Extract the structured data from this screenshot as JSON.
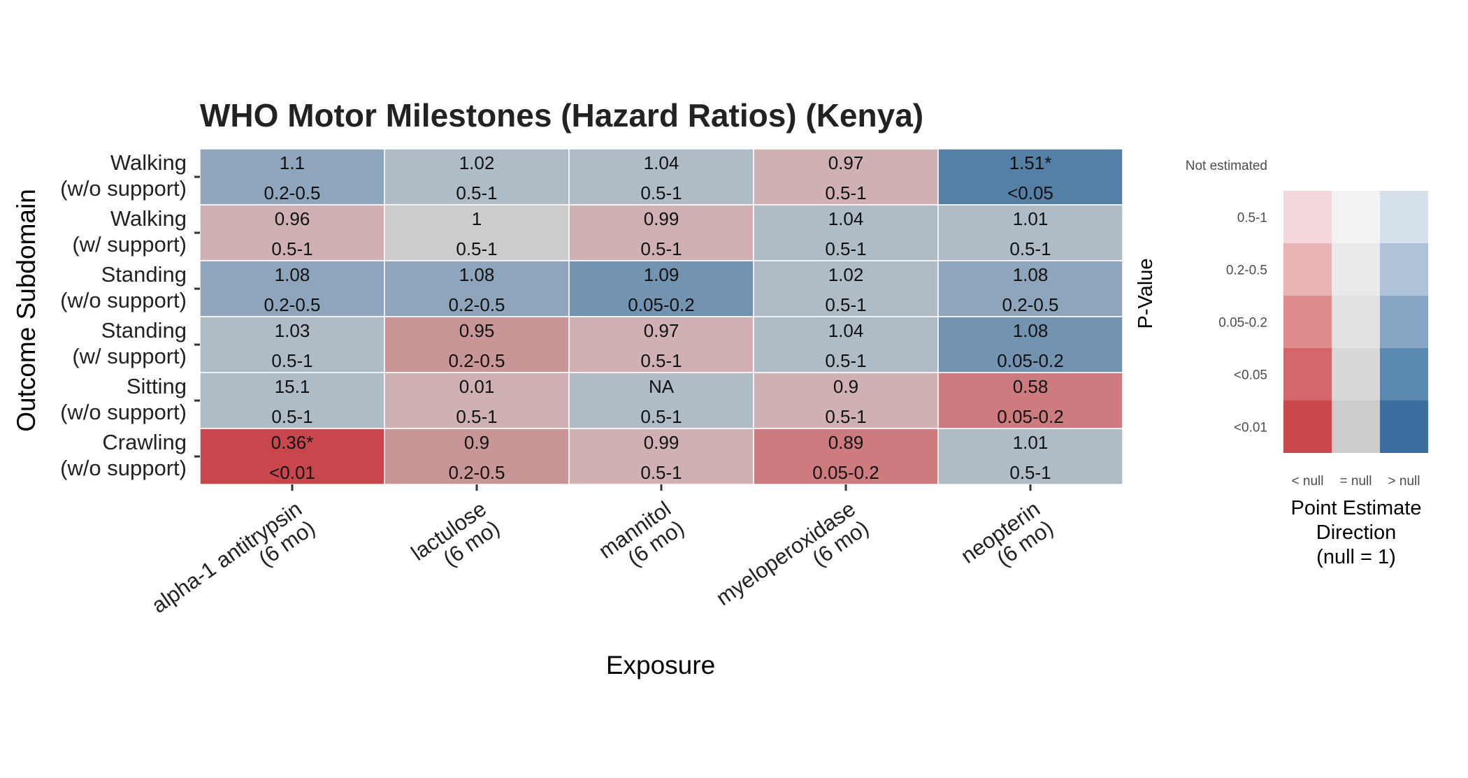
{
  "chart_data": {
    "type": "heatmap",
    "title": "WHO Motor Milestones (Hazard Ratios) (Kenya)",
    "xlabel": "Exposure",
    "ylabel": "Outcome Subdomain",
    "x_categories": [
      [
        "alpha-1 antitrypsin",
        "(6 mo)"
      ],
      [
        "lactulose",
        "(6 mo)"
      ],
      [
        "mannitol",
        "(6 mo)"
      ],
      [
        "myeloperoxidase",
        "(6 mo)"
      ],
      [
        "neopterin",
        "(6 mo)"
      ]
    ],
    "y_categories": [
      [
        "Walking",
        "(w/o support)"
      ],
      [
        "Walking",
        "(w/ support)"
      ],
      [
        "Standing",
        "(w/o support)"
      ],
      [
        "Standing",
        "(w/ support)"
      ],
      [
        "Sitting",
        "(w/o support)"
      ],
      [
        "Crawling",
        "(w/o support)"
      ]
    ],
    "cells": [
      [
        {
          "estimate": "1.1",
          "pvalue": "0.2-0.5",
          "direction": ">",
          "color": "#8fa5bb"
        },
        {
          "estimate": "1.02",
          "pvalue": "0.5-1",
          "direction": ">",
          "color": "#afbbc5"
        },
        {
          "estimate": "1.04",
          "pvalue": "0.5-1",
          "direction": ">",
          "color": "#afbbc5"
        },
        {
          "estimate": "0.97",
          "pvalue": "0.5-1",
          "direction": "<",
          "color": "#cfb1b4"
        },
        {
          "estimate": "1.51*",
          "pvalue": "<0.05",
          "direction": ">",
          "color": "#5580a5"
        }
      ],
      [
        {
          "estimate": "0.96",
          "pvalue": "0.5-1",
          "direction": "<",
          "color": "#cfb1b4"
        },
        {
          "estimate": "1",
          "pvalue": "0.5-1",
          "direction": "=",
          "color": "#cccccc"
        },
        {
          "estimate": "0.99",
          "pvalue": "0.5-1",
          "direction": "<",
          "color": "#cfb1b4"
        },
        {
          "estimate": "1.04",
          "pvalue": "0.5-1",
          "direction": ">",
          "color": "#afbbc5"
        },
        {
          "estimate": "1.01",
          "pvalue": "0.5-1",
          "direction": ">",
          "color": "#afbbc5"
        }
      ],
      [
        {
          "estimate": "1.08",
          "pvalue": "0.2-0.5",
          "direction": ">",
          "color": "#8fa5bb"
        },
        {
          "estimate": "1.08",
          "pvalue": "0.2-0.5",
          "direction": ">",
          "color": "#8fa5bb"
        },
        {
          "estimate": "1.09",
          "pvalue": "0.05-0.2",
          "direction": ">",
          "color": "#7394b0"
        },
        {
          "estimate": "1.02",
          "pvalue": "0.5-1",
          "direction": ">",
          "color": "#afbbc5"
        },
        {
          "estimate": "1.08",
          "pvalue": "0.2-0.5",
          "direction": ">",
          "color": "#8fa5bb"
        }
      ],
      [
        {
          "estimate": "1.03",
          "pvalue": "0.5-1",
          "direction": ">",
          "color": "#afbbc5"
        },
        {
          "estimate": "0.95",
          "pvalue": "0.2-0.5",
          "direction": "<",
          "color": "#c99698"
        },
        {
          "estimate": "0.97",
          "pvalue": "0.5-1",
          "direction": "<",
          "color": "#cfb1b4"
        },
        {
          "estimate": "1.04",
          "pvalue": "0.5-1",
          "direction": ">",
          "color": "#afbbc5"
        },
        {
          "estimate": "1.08",
          "pvalue": "0.05-0.2",
          "direction": ">",
          "color": "#7394b0"
        }
      ],
      [
        {
          "estimate": "15.1",
          "pvalue": "0.5-1",
          "direction": ">",
          "color": "#afbbc5"
        },
        {
          "estimate": "0.01",
          "pvalue": "0.5-1",
          "direction": "<",
          "color": "#cfb1b4"
        },
        {
          "estimate": "NA",
          "pvalue": "0.5-1",
          "direction": ">",
          "color": "#afbbc5"
        },
        {
          "estimate": "0.9",
          "pvalue": "0.5-1",
          "direction": "<",
          "color": "#cfb1b4"
        },
        {
          "estimate": "0.58",
          "pvalue": "0.05-0.2",
          "direction": "<",
          "color": "#cd7b7e"
        }
      ],
      [
        {
          "estimate": "0.36*",
          "pvalue": "<0.01",
          "direction": "<",
          "color": "#c9474c"
        },
        {
          "estimate": "0.9",
          "pvalue": "0.2-0.5",
          "direction": "<",
          "color": "#c99698"
        },
        {
          "estimate": "0.99",
          "pvalue": "0.5-1",
          "direction": "<",
          "color": "#cfb1b4"
        },
        {
          "estimate": "0.89",
          "pvalue": "0.05-0.2",
          "direction": "<",
          "color": "#cd7b7e"
        },
        {
          "estimate": "1.01",
          "pvalue": "0.5-1",
          "direction": ">",
          "color": "#afbbc5"
        }
      ]
    ],
    "legend": {
      "y_title": "P-Value",
      "x_title": [
        "Point Estimate",
        "Direction",
        "(null = 1)"
      ],
      "not_estimated_label": "Not estimated",
      "pvalue_levels": [
        "0.5-1",
        "0.2-0.5",
        "0.05-0.2",
        "<0.05",
        "<0.01"
      ],
      "direction_levels": [
        "< null",
        "= null",
        "> null"
      ],
      "colors": [
        [
          "#f2d8db",
          "#f3f3f3",
          "#d6e0ea"
        ],
        [
          "#e8b4b6",
          "#eaeaea",
          "#afc3d8"
        ],
        [
          "#df8c8f",
          "#e2e2e2",
          "#86a6c4"
        ],
        [
          "#d4676b",
          "#d8d8d8",
          "#5c89b1"
        ],
        [
          "#c9484c",
          "#cccccc",
          "#3b6f9f"
        ]
      ]
    }
  }
}
